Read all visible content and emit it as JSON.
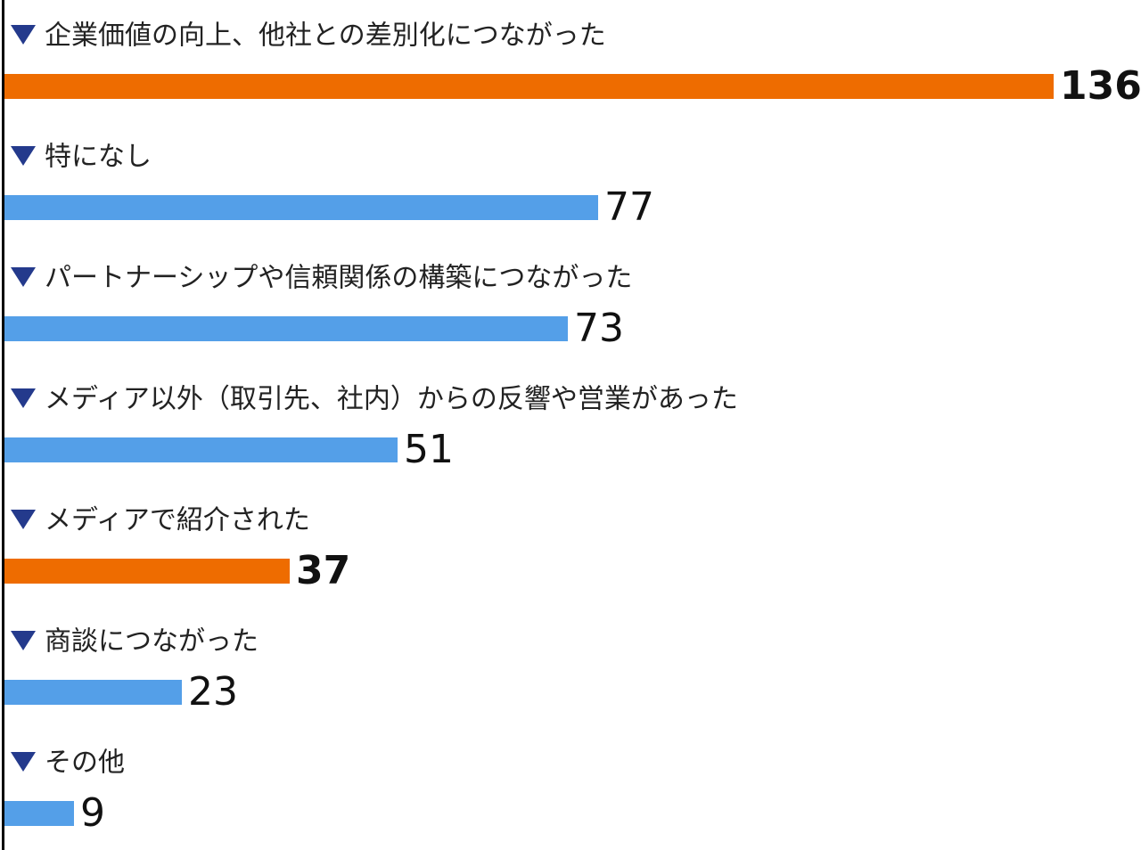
{
  "chart_data": {
    "type": "bar",
    "orientation": "horizontal",
    "title": "",
    "xlabel": "",
    "ylabel": "",
    "xlim": [
      0,
      136
    ],
    "grid": false,
    "legend": "none",
    "categories": [
      "企業価値の向上、他社との差別化につながった",
      "特になし",
      "パートナーシップや信頼関係の構築につながった",
      "メディア以外（取引先、社内）からの反響や営業があった",
      "メディアで紹介された",
      "商談につながった",
      "その他"
    ],
    "values": [
      136,
      77,
      73,
      51,
      37,
      23,
      9
    ],
    "highlighted": [
      true,
      false,
      false,
      false,
      true,
      false,
      false
    ]
  },
  "colors": {
    "highlight": "#ee6c00",
    "normal": "#549fe8",
    "marker": "#243a8c",
    "axis": "#000000"
  },
  "marker_icon": "down-triangle-icon"
}
